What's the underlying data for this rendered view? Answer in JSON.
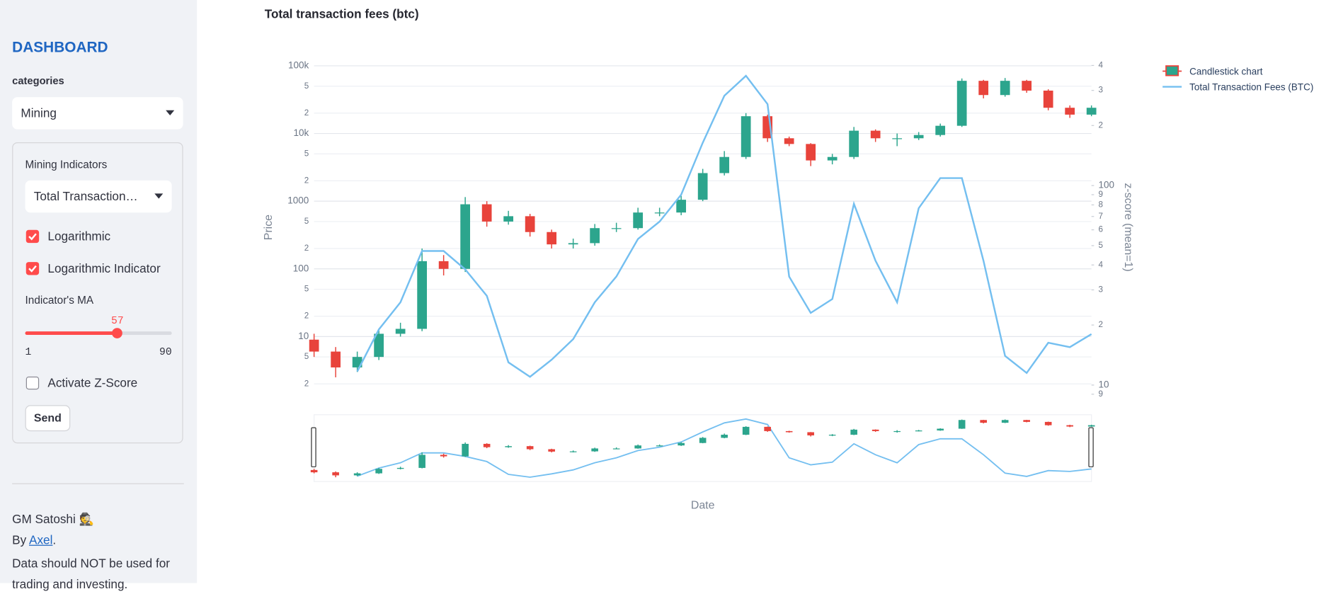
{
  "sidebar": {
    "title": "DASHBOARD",
    "category_label": "categories",
    "category_value": "Mining",
    "panel_title": "Mining Indicators",
    "indicator_value": "Total Transaction…",
    "checkboxes": [
      {
        "label": "Logarithmic",
        "checked": true
      },
      {
        "label": "Logarithmic Indicator",
        "checked": true
      },
      {
        "label": "Activate Z-Score",
        "checked": false
      }
    ],
    "slider": {
      "label": "Indicator's MA",
      "value": 57,
      "min": 1,
      "max": 90
    },
    "button": "Send",
    "footer": {
      "line1": "GM Satoshi 🕵️",
      "by": "By ",
      "author": "Axel",
      "period": ".",
      "note": "Data should NOT be used for trading and investing."
    }
  },
  "chart_data": {
    "type": "candlestick",
    "title": "Total transaction fees (btc)",
    "x_label": "Date",
    "y_label": "Price",
    "y2_label": "z-score (mean=1)",
    "y_scale": "log",
    "y2_scale": "log",
    "grid": true,
    "legend": "outside-right",
    "range_slider": true,
    "ylim": [
      1.6,
      112000
    ],
    "y2lim": [
      9.4,
      414
    ],
    "yticks": [
      2,
      5,
      10,
      {
        "value": 20,
        "label": "2"
      },
      {
        "value": 50,
        "label": "5"
      },
      100,
      {
        "value": 200,
        "label": "2"
      },
      {
        "value": 500,
        "label": "5"
      },
      1000,
      {
        "value": 2000,
        "label": "2"
      },
      {
        "value": 5000,
        "label": "5"
      },
      {
        "value": 10000,
        "label": "10k"
      },
      {
        "value": 20000,
        "label": "2"
      },
      {
        "value": 50000,
        "label": "5"
      },
      {
        "value": 100000,
        "label": "100k"
      }
    ],
    "y2ticks": [
      9,
      10,
      {
        "value": 20,
        "label": "2"
      },
      {
        "value": 30,
        "label": "3"
      },
      {
        "value": 40,
        "label": "4"
      },
      {
        "value": 50,
        "label": "5"
      },
      {
        "value": 60,
        "label": "6"
      },
      {
        "value": 70,
        "label": "7"
      },
      {
        "value": 80,
        "label": "8"
      },
      {
        "value": 90,
        "label": "9"
      },
      100,
      {
        "value": 200,
        "label": "2"
      },
      {
        "value": 300,
        "label": "3"
      },
      {
        "value": 400,
        "label": "4"
      }
    ],
    "candles": {
      "name": "Candlestick chart",
      "increasing_color": "#2ca58d",
      "decreasing_color": "#e8433b",
      "open": [
        9,
        6,
        3.5,
        5,
        11,
        13,
        130,
        100,
        900,
        500,
        600,
        350,
        230,
        240,
        400,
        400,
        680,
        680,
        1050,
        2600,
        4500,
        18000,
        8500,
        7000,
        4000,
        4500,
        11000,
        8500,
        8500,
        9500,
        13000,
        60000,
        37000,
        60000,
        43000,
        24000,
        19000
      ],
      "high": [
        11,
        7,
        6,
        13,
        16,
        200,
        160,
        1150,
        1000,
        720,
        650,
        380,
        280,
        460,
        480,
        800,
        800,
        1200,
        3000,
        5500,
        20000,
        19000,
        9000,
        7200,
        5000,
        12500,
        11500,
        10000,
        10500,
        14000,
        65000,
        62000,
        66000,
        62000,
        45000,
        26000,
        26000
      ],
      "low": [
        5,
        2.5,
        3,
        4.5,
        10,
        12,
        80,
        90,
        420,
        450,
        300,
        200,
        200,
        220,
        350,
        380,
        600,
        620,
        1000,
        2400,
        4200,
        7500,
        6500,
        3300,
        3500,
        4200,
        7500,
        6500,
        8000,
        9000,
        12500,
        33000,
        35000,
        40000,
        22000,
        17000,
        18000
      ],
      "close": [
        6,
        3.5,
        5,
        11,
        13,
        130,
        100,
        900,
        500,
        600,
        350,
        230,
        240,
        400,
        400,
        680,
        680,
        1050,
        2600,
        4500,
        18000,
        8500,
        7000,
        4000,
        4500,
        11000,
        8500,
        8500,
        9500,
        13000,
        60000,
        37000,
        60000,
        43000,
        24000,
        19000,
        24000
      ]
    },
    "series": [
      {
        "name": "Total Transaction Fees (BTC)",
        "color": "#74bff0",
        "axis": "y2",
        "values": [
          null,
          null,
          11.7,
          19,
          26,
          47,
          47,
          38,
          28,
          13,
          11,
          13.4,
          17,
          26,
          35,
          54,
          66,
          90,
          164,
          282,
          355,
          256,
          35,
          23,
          27,
          81,
          42,
          26,
          77,
          109,
          109,
          42,
          14,
          11.5,
          16.3,
          15.5,
          18
        ]
      }
    ]
  }
}
